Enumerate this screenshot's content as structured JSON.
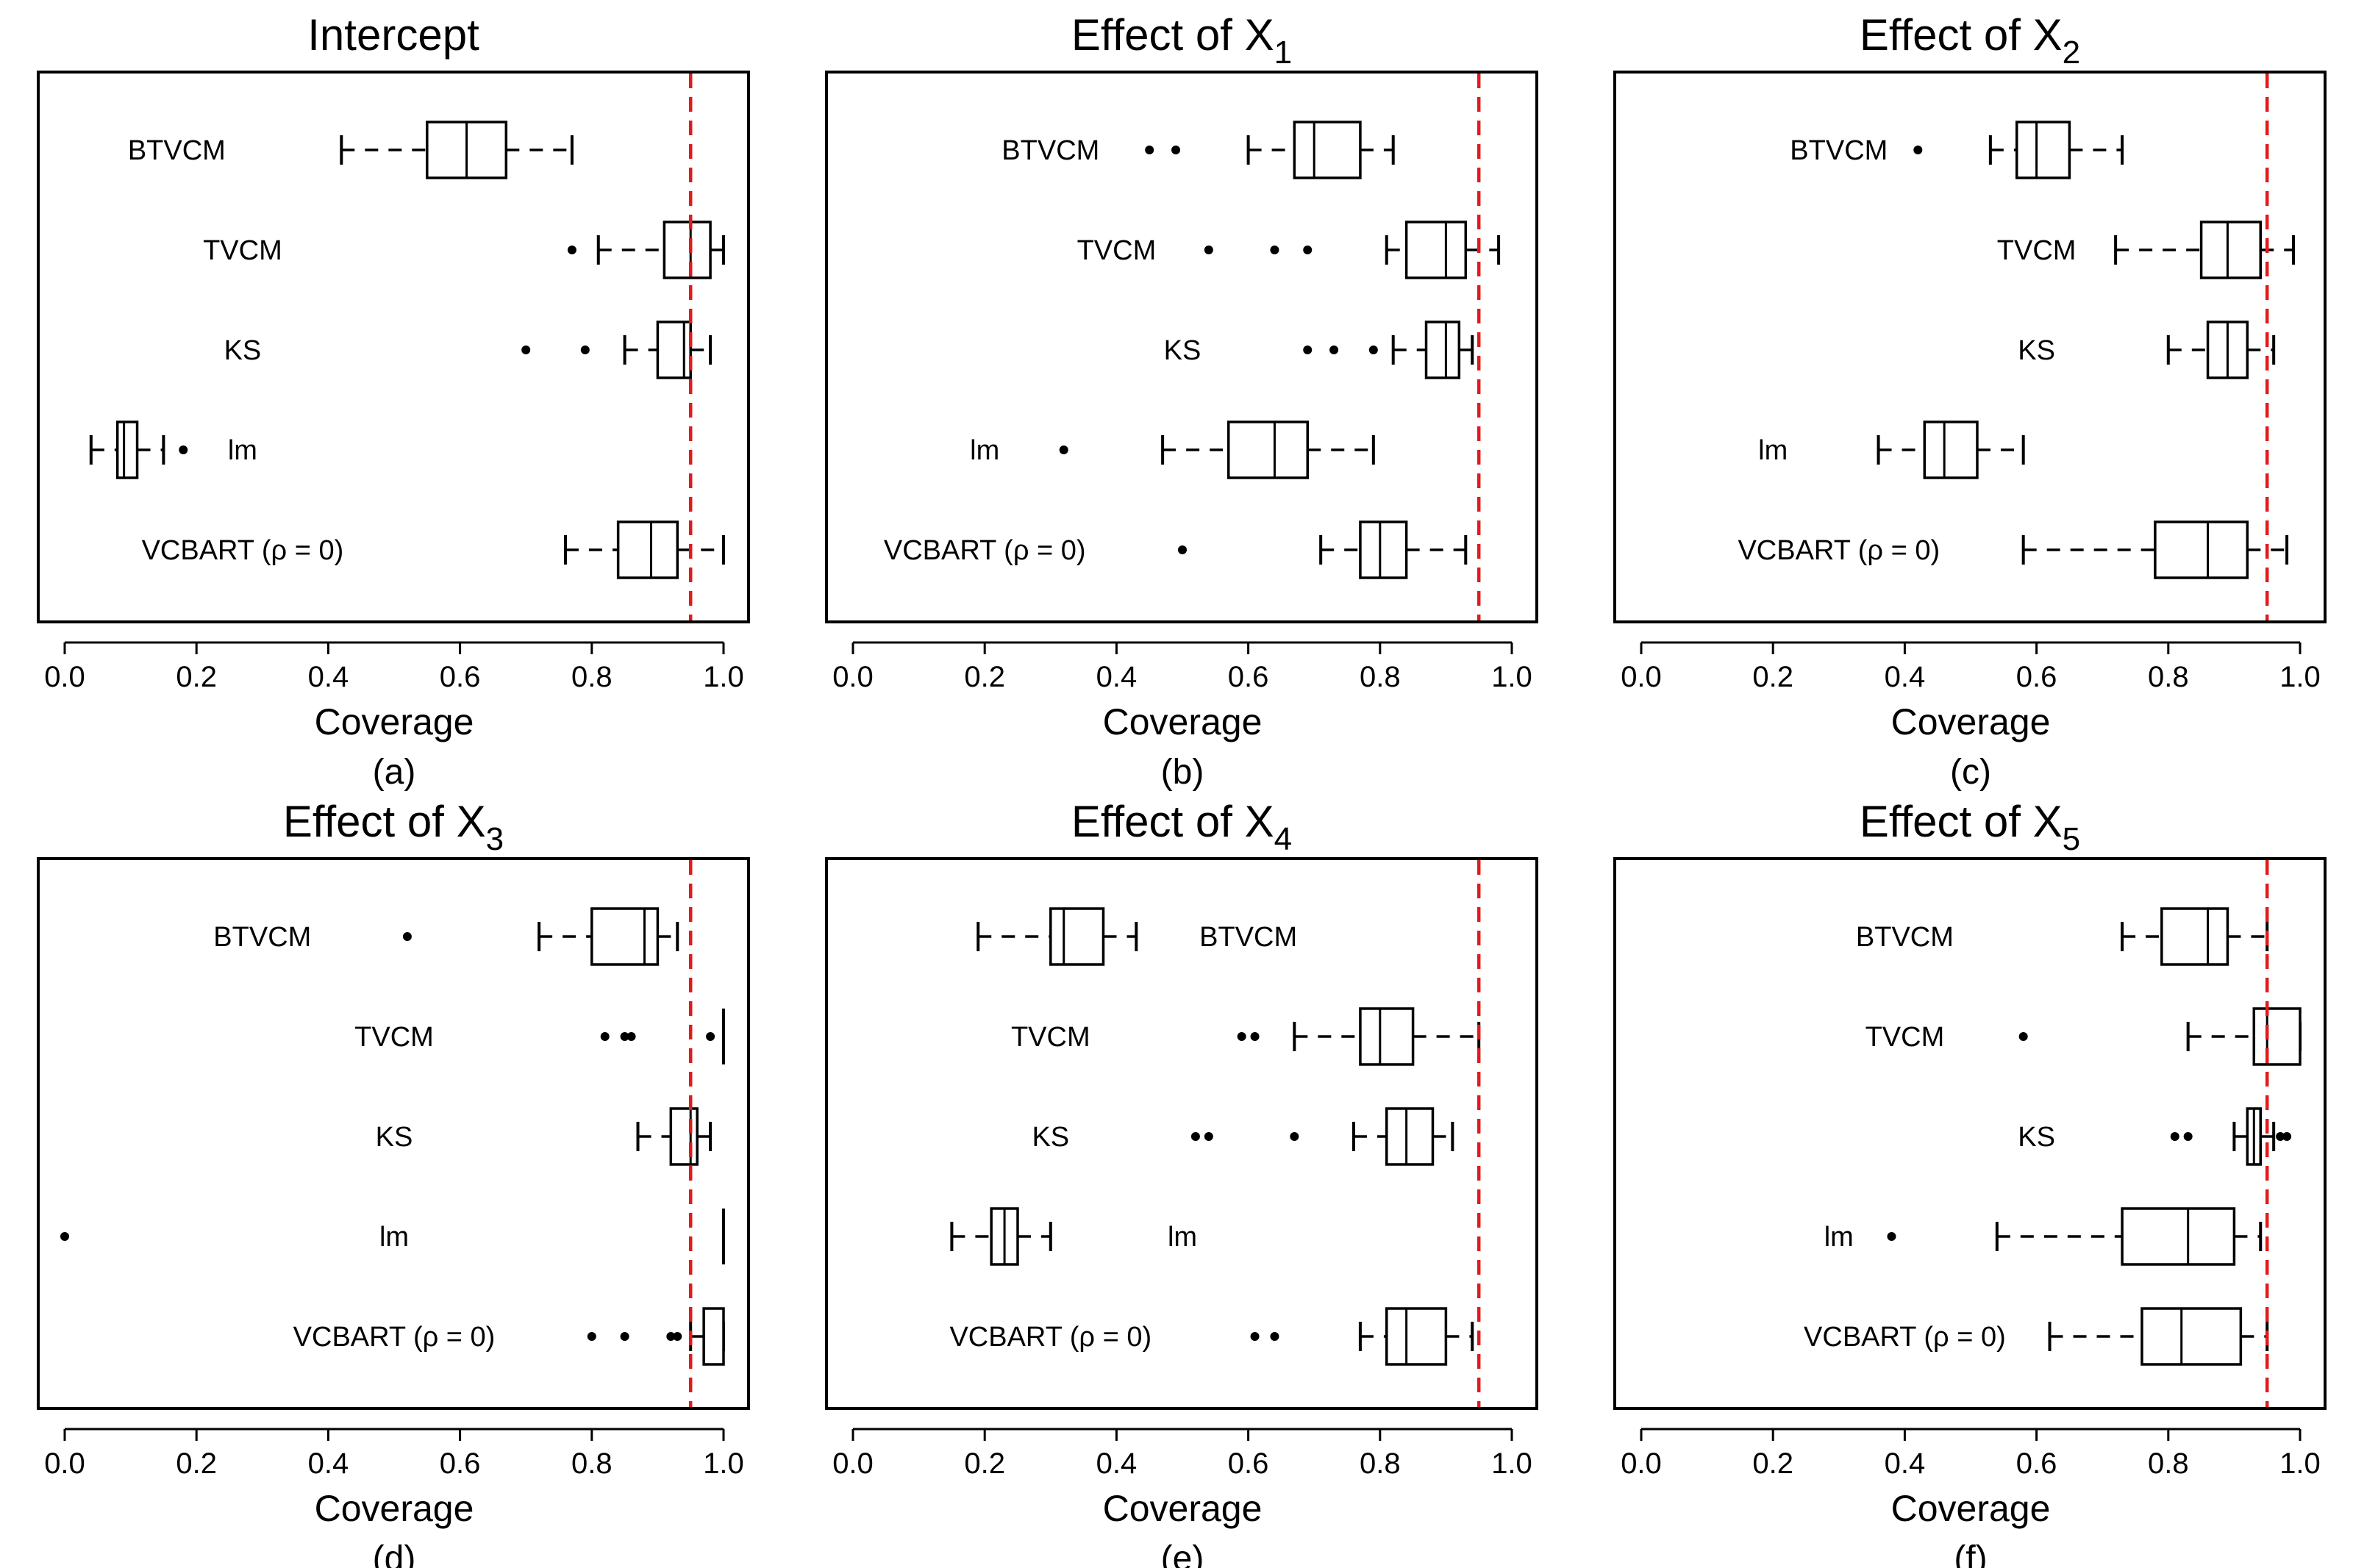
{
  "chart_data": [
    {
      "type": "boxplot",
      "title": "Intercept",
      "title_subscript": "",
      "caption": "(a)",
      "xlabel": "Coverage",
      "xlim": [
        0.0,
        1.0
      ],
      "xticks": [
        "0.0",
        "0.2",
        "0.4",
        "0.6",
        "0.8",
        "1.0"
      ],
      "reference_line": 0.95,
      "series": [
        {
          "name": "BTVCM",
          "label_x": 0.17,
          "min": 0.42,
          "q1": 0.55,
          "median": 0.61,
          "q3": 0.67,
          "max": 0.77,
          "outliers": []
        },
        {
          "name": "TVCM",
          "label_x": 0.27,
          "min": 0.81,
          "q1": 0.91,
          "median": 0.95,
          "q3": 0.98,
          "max": 1.0,
          "outliers": [
            0.77
          ]
        },
        {
          "name": "KS",
          "label_x": 0.27,
          "min": 0.85,
          "q1": 0.9,
          "median": 0.94,
          "q3": 0.95,
          "max": 0.98,
          "outliers": [
            0.7,
            0.79
          ]
        },
        {
          "name": "lm",
          "label_x": 0.27,
          "min": 0.04,
          "q1": 0.08,
          "median": 0.09,
          "q3": 0.11,
          "max": 0.15,
          "outliers": [
            0.18
          ]
        },
        {
          "name": "VCBART (ρ = 0)",
          "label_x": 0.27,
          "min": 0.76,
          "q1": 0.84,
          "median": 0.89,
          "q3": 0.93,
          "max": 1.0,
          "outliers": []
        }
      ]
    },
    {
      "type": "boxplot",
      "title": "Effect of X",
      "title_subscript": "1",
      "caption": "(b)",
      "xlabel": "Coverage",
      "xlim": [
        0.0,
        1.0
      ],
      "xticks": [
        "0.0",
        "0.2",
        "0.4",
        "0.6",
        "0.8",
        "1.0"
      ],
      "reference_line": 0.95,
      "series": [
        {
          "name": "BTVCM",
          "label_x": 0.3,
          "min": 0.6,
          "q1": 0.67,
          "median": 0.7,
          "q3": 0.77,
          "max": 0.82,
          "outliers": [
            0.45,
            0.49
          ]
        },
        {
          "name": "TVCM",
          "label_x": 0.4,
          "min": 0.81,
          "q1": 0.84,
          "median": 0.9,
          "q3": 0.93,
          "max": 0.98,
          "outliers": [
            0.54,
            0.64,
            0.69
          ]
        },
        {
          "name": "KS",
          "label_x": 0.5,
          "min": 0.82,
          "q1": 0.87,
          "median": 0.9,
          "q3": 0.92,
          "max": 0.94,
          "outliers": [
            0.69,
            0.73,
            0.79
          ]
        },
        {
          "name": "lm",
          "label_x": 0.2,
          "min": 0.47,
          "q1": 0.57,
          "median": 0.64,
          "q3": 0.69,
          "max": 0.79,
          "outliers": [
            0.32
          ]
        },
        {
          "name": "VCBART (ρ = 0)",
          "label_x": 0.2,
          "min": 0.71,
          "q1": 0.77,
          "median": 0.8,
          "q3": 0.84,
          "max": 0.93,
          "outliers": [
            0.5
          ]
        }
      ]
    },
    {
      "type": "boxplot",
      "title": "Effect of X",
      "title_subscript": "2",
      "caption": "(c)",
      "xlabel": "Coverage",
      "xlim": [
        0.0,
        1.0
      ],
      "xticks": [
        "0.0",
        "0.2",
        "0.4",
        "0.6",
        "0.8",
        "1.0"
      ],
      "reference_line": 0.95,
      "series": [
        {
          "name": "BTVCM",
          "label_x": 0.3,
          "min": 0.53,
          "q1": 0.57,
          "median": 0.6,
          "q3": 0.65,
          "max": 0.73,
          "outliers": [
            0.42
          ]
        },
        {
          "name": "TVCM",
          "label_x": 0.6,
          "min": 0.72,
          "q1": 0.85,
          "median": 0.89,
          "q3": 0.94,
          "max": 0.99,
          "outliers": []
        },
        {
          "name": "KS",
          "label_x": 0.6,
          "min": 0.8,
          "q1": 0.86,
          "median": 0.89,
          "q3": 0.92,
          "max": 0.96,
          "outliers": []
        },
        {
          "name": "lm",
          "label_x": 0.2,
          "min": 0.36,
          "q1": 0.43,
          "median": 0.46,
          "q3": 0.51,
          "max": 0.58,
          "outliers": []
        },
        {
          "name": "VCBART (ρ = 0)",
          "label_x": 0.3,
          "min": 0.58,
          "q1": 0.78,
          "median": 0.86,
          "q3": 0.92,
          "max": 0.98,
          "outliers": []
        }
      ]
    },
    {
      "type": "boxplot",
      "title": "Effect of X",
      "title_subscript": "3",
      "caption": "(d)",
      "xlabel": "Coverage",
      "xlim": [
        0.0,
        1.0
      ],
      "xticks": [
        "0.0",
        "0.2",
        "0.4",
        "0.6",
        "0.8",
        "1.0"
      ],
      "reference_line": 0.95,
      "series": [
        {
          "name": "BTVCM",
          "label_x": 0.3,
          "min": 0.72,
          "q1": 0.8,
          "median": 0.88,
          "q3": 0.9,
          "max": 0.93,
          "outliers": [
            0.52
          ]
        },
        {
          "name": "TVCM",
          "label_x": 0.5,
          "min": 1.0,
          "q1": 1.0,
          "median": 1.0,
          "q3": 1.0,
          "max": 1.0,
          "outliers": [
            0.82,
            0.85,
            0.86,
            0.98
          ]
        },
        {
          "name": "KS",
          "label_x": 0.5,
          "min": 0.87,
          "q1": 0.92,
          "median": 0.95,
          "q3": 0.96,
          "max": 0.98,
          "outliers": []
        },
        {
          "name": "lm",
          "label_x": 0.5,
          "min": 1.0,
          "q1": 1.0,
          "median": 1.0,
          "q3": 1.0,
          "max": 1.0,
          "outliers": [
            0.0
          ]
        },
        {
          "name": "VCBART (ρ = 0)",
          "label_x": 0.5,
          "min": 0.95,
          "q1": 0.97,
          "median": 1.0,
          "q3": 1.0,
          "max": 1.0,
          "outliers": [
            0.8,
            0.85,
            0.92,
            0.93
          ]
        }
      ]
    },
    {
      "type": "boxplot",
      "title": "Effect of X",
      "title_subscript": "4",
      "caption": "(e)",
      "xlabel": "Coverage",
      "xlim": [
        0.0,
        1.0
      ],
      "xticks": [
        "0.0",
        "0.2",
        "0.4",
        "0.6",
        "0.8",
        "1.0"
      ],
      "reference_line": 0.95,
      "series": [
        {
          "name": "BTVCM",
          "label_x": 0.6,
          "min": 0.19,
          "q1": 0.3,
          "median": 0.32,
          "q3": 0.38,
          "max": 0.43,
          "outliers": []
        },
        {
          "name": "TVCM",
          "label_x": 0.3,
          "min": 0.67,
          "q1": 0.77,
          "median": 0.8,
          "q3": 0.85,
          "max": 0.95,
          "outliers": [
            0.59,
            0.61
          ]
        },
        {
          "name": "KS",
          "label_x": 0.3,
          "min": 0.76,
          "q1": 0.81,
          "median": 0.84,
          "q3": 0.88,
          "max": 0.91,
          "outliers": [
            0.52,
            0.54,
            0.67
          ]
        },
        {
          "name": "lm",
          "label_x": 0.5,
          "min": 0.15,
          "q1": 0.21,
          "median": 0.23,
          "q3": 0.25,
          "max": 0.3,
          "outliers": []
        },
        {
          "name": "VCBART (ρ = 0)",
          "label_x": 0.3,
          "min": 0.77,
          "q1": 0.81,
          "median": 0.84,
          "q3": 0.9,
          "max": 0.94,
          "outliers": [
            0.61,
            0.64
          ]
        }
      ]
    },
    {
      "type": "boxplot",
      "title": "Effect of X",
      "title_subscript": "5",
      "caption": "(f)",
      "xlabel": "Coverage",
      "xlim": [
        0.0,
        1.0
      ],
      "xticks": [
        "0.0",
        "0.2",
        "0.4",
        "0.6",
        "0.8",
        "1.0"
      ],
      "reference_line": 0.95,
      "series": [
        {
          "name": "BTVCM",
          "label_x": 0.4,
          "min": 0.73,
          "q1": 0.79,
          "median": 0.86,
          "q3": 0.89,
          "max": 0.95,
          "outliers": []
        },
        {
          "name": "TVCM",
          "label_x": 0.4,
          "min": 0.83,
          "q1": 0.93,
          "median": 0.95,
          "q3": 1.0,
          "max": 1.0,
          "outliers": [
            0.58
          ]
        },
        {
          "name": "KS",
          "label_x": 0.6,
          "min": 0.9,
          "q1": 0.92,
          "median": 0.93,
          "q3": 0.94,
          "max": 0.96,
          "outliers": [
            0.81,
            0.83,
            0.97,
            0.98
          ]
        },
        {
          "name": "lm",
          "label_x": 0.3,
          "min": 0.54,
          "q1": 0.73,
          "median": 0.83,
          "q3": 0.9,
          "max": 0.94,
          "outliers": [
            0.38
          ]
        },
        {
          "name": "VCBART (ρ = 0)",
          "label_x": 0.4,
          "min": 0.62,
          "q1": 0.76,
          "median": 0.82,
          "q3": 0.91,
          "max": 0.95,
          "outliers": []
        }
      ]
    }
  ]
}
